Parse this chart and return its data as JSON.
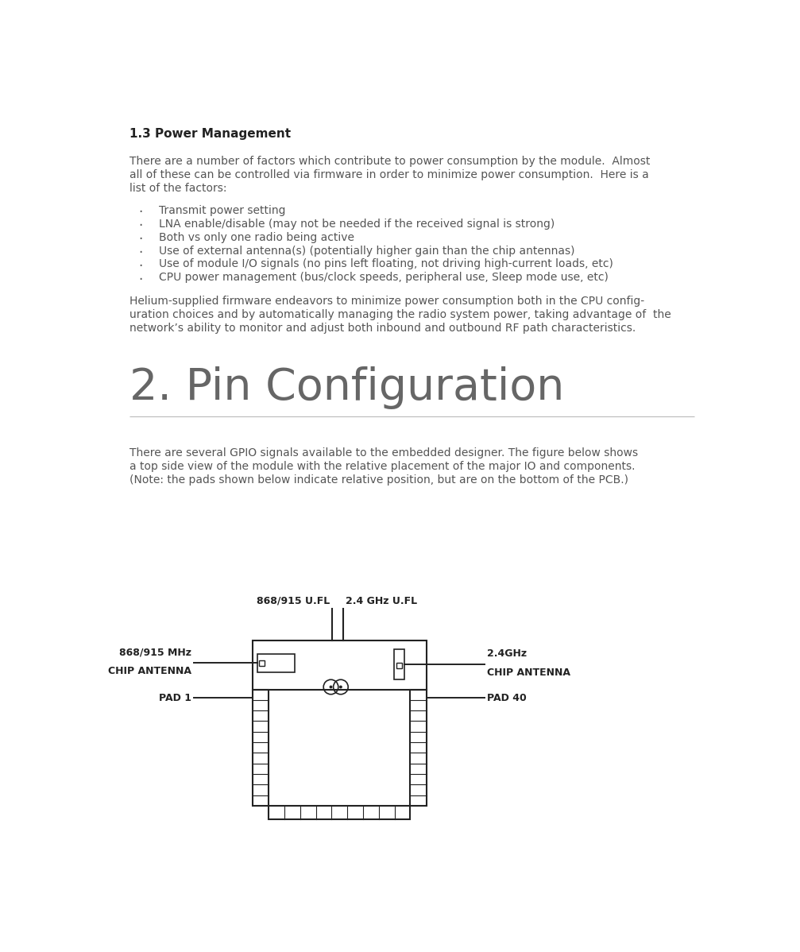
{
  "bg_color": "#ffffff",
  "section_title": "1.3 Power Management",
  "para1_lines": [
    "There are a number of factors which contribute to power consumption by the module.  Almost",
    "all of these can be controlled via firmware in order to minimize power consumption.  Here is a",
    "list of the factors:"
  ],
  "bullet_items": [
    "Transmit power setting",
    "LNA enable/disable (may not be needed if the received signal is strong)",
    "Both vs only one radio being active",
    "Use of external antenna(s) (potentially higher gain than the chip antennas)",
    "Use of module I/O signals (no pins left floating, not driving high-current loads, etc)",
    "CPU power management (bus/clock speeds, peripheral use, Sleep mode use, etc)"
  ],
  "para2_lines": [
    "Helium-supplied firmware endeavors to minimize power consumption both in the CPU config-",
    "uration choices and by automatically managing the radio system power, taking advantage of  the",
    "network’s ability to monitor and adjust both inbound and outbound RF path characteristics."
  ],
  "section2_title": "2. Pin Configuration",
  "para3_lines": [
    "There are several GPIO signals available to the embedded designer. The figure below shows",
    "a top side view of the module with the relative placement of the major IO and components.",
    "(Note: the pads shown below indicate relative position, but are on the bottom of the PCB.)"
  ],
  "label_868_ufl": "868/915 U.FL",
  "label_24_ufl": "2.4 GHz U.FL",
  "label_868_chip_line1": "868/915 MHz",
  "label_868_chip_line2": "CHIP ANTENNA",
  "label_24_chip_line1": "2.4GHz",
  "label_24_chip_line2": "CHIP ANTENNA",
  "label_pad1": "PAD 1",
  "label_pad40": "PAD 40",
  "text_color": "#555555",
  "diagram_color": "#222222",
  "title_color": "#222222",
  "section2_color": "#666666",
  "rule_color": "#bbbbbb"
}
